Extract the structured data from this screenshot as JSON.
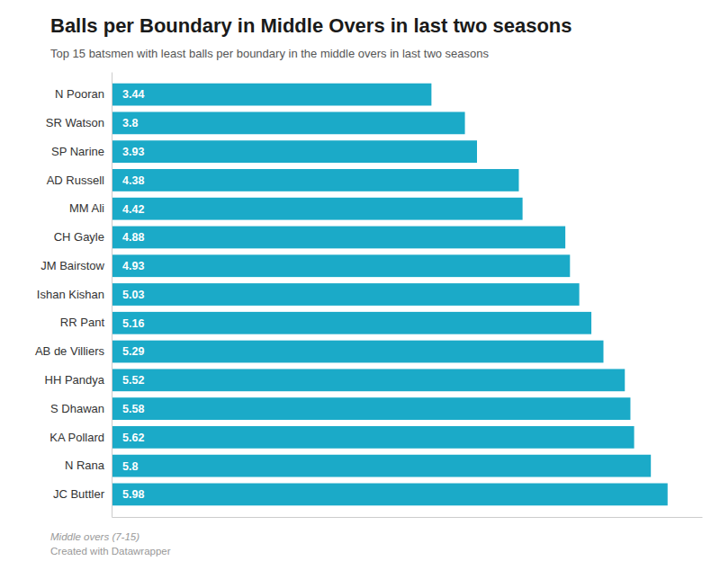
{
  "chart_data": {
    "type": "bar",
    "orientation": "horizontal",
    "title": "Balls per Boundary in Middle Overs in last two seasons",
    "subtitle": "Top 15 batsmen with least balls per boundary in the middle overs in last two seasons",
    "annotations": [
      "Middle overs (7-15)",
      "Created with Datawrapper"
    ],
    "categories": [
      "JC Buttler",
      "N Rana",
      "KA Pollard",
      "S Dhawan",
      "HH Pandya",
      "AB de Villiers",
      "RR Pant",
      "Ishan Kishan",
      "JM Bairstow",
      "CH Gayle",
      "MM Ali",
      "AD Russell",
      "SP Narine",
      "SR Watson",
      "N Pooran"
    ],
    "values": [
      5.98,
      5.8,
      5.62,
      5.58,
      5.52,
      5.29,
      5.16,
      5.03,
      4.93,
      4.88,
      4.42,
      4.38,
      3.93,
      3.8,
      3.44
    ],
    "color": "#1BAAC8",
    "xlim": [
      0,
      6.35
    ],
    "data_labels": true,
    "tick_labels": "y",
    "grid": false
  }
}
